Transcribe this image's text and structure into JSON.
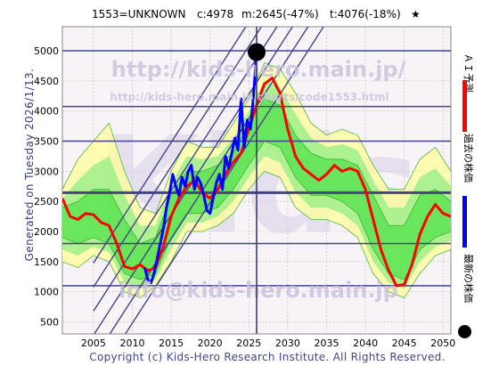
{
  "header": {
    "code_name": "1553=UNKNOWN",
    "current": "c:4978",
    "min_stat": "m:2645(-47%)",
    "target_stat": "t:4076(-18%)",
    "star": "★"
  },
  "side_label": "Generated on Tuesday 2026/1/13.",
  "copyright": "Copyright (c) Kids-Hero Research Institute. All Rights Reserved.",
  "watermarks": {
    "top_url": "http://kids-hero.main.jp/",
    "mid_url": "http://kids-hero.main.jp/charts/code1553.html",
    "big_logo": "Kids",
    "email": "info@kids-hero.main.jp"
  },
  "legend": {
    "ai_forecast": "ＡＩ予測",
    "past_price": "過去の株価",
    "latest_price": "最新の株価"
  },
  "colors": {
    "ai_forecast": "#ff0000",
    "past_price": "#0000ff",
    "latest_marker": "#000000",
    "band_inner": "#33dd33",
    "band_mid": "#99ee88",
    "band_outer": "#ffff99",
    "hline": "#444488",
    "channel": "#444488",
    "grid": "#bbbbbb"
  },
  "chart_data": {
    "type": "line",
    "title": "",
    "xlabel": "",
    "ylabel": "",
    "xlim": [
      2001,
      2051
    ],
    "ylim": [
      300,
      5400
    ],
    "x_ticks": [
      2005,
      2010,
      2015,
      2020,
      2025,
      2030,
      2035,
      2040,
      2045,
      2050
    ],
    "y_ticks": [
      500,
      1000,
      1500,
      2000,
      2500,
      3000,
      3500,
      4000,
      4500,
      5000
    ],
    "horizontal_levels": [
      1100,
      1800,
      2645,
      3500,
      4076,
      5000
    ],
    "current_date": 2026,
    "latest_point": {
      "x": 2026.0,
      "y": 4978
    },
    "series": [
      {
        "name": "ＡＩ予測",
        "x": [
          2001,
          2002,
          2003,
          2004,
          2005,
          2006,
          2007,
          2008,
          2009,
          2010,
          2011,
          2012,
          2013,
          2014,
          2015,
          2016,
          2017,
          2018,
          2019,
          2020,
          2021,
          2022,
          2023,
          2024,
          2025,
          2026,
          2027,
          2028,
          2029,
          2030,
          2031,
          2032,
          2033,
          2034,
          2035,
          2036,
          2037,
          2038,
          2039,
          2040,
          2041,
          2042,
          2043,
          2044,
          2045,
          2046,
          2047,
          2048,
          2049,
          2050,
          2051
        ],
        "values": [
          2550,
          2250,
          2200,
          2300,
          2280,
          2150,
          2100,
          1800,
          1420,
          1380,
          1450,
          1350,
          1400,
          1750,
          2250,
          2550,
          2750,
          2850,
          2650,
          2550,
          2700,
          2950,
          3150,
          3300,
          3700,
          4100,
          4450,
          4550,
          4300,
          3700,
          3250,
          3050,
          2950,
          2850,
          2950,
          3100,
          3000,
          3050,
          3000,
          2700,
          2200,
          1700,
          1350,
          1100,
          1120,
          1450,
          1950,
          2250,
          2450,
          2300,
          2250
        ]
      },
      {
        "name": "過去の株価",
        "x": [
          2011.6,
          2012.0,
          2012.4,
          2012.8,
          2013.2,
          2013.6,
          2014.0,
          2014.4,
          2014.8,
          2015.2,
          2015.6,
          2016.0,
          2016.4,
          2016.8,
          2017.2,
          2017.6,
          2018.0,
          2018.4,
          2018.8,
          2019.2,
          2019.6,
          2020.0,
          2020.4,
          2020.8,
          2021.2,
          2021.6,
          2022.0,
          2022.4,
          2022.8,
          2023.2,
          2023.6,
          2024.0,
          2024.4,
          2024.8,
          2025.2,
          2025.6,
          2026.0
        ],
        "values": [
          1400,
          1200,
          1150,
          1300,
          1550,
          1800,
          2050,
          2400,
          2650,
          2950,
          2750,
          2600,
          2900,
          2750,
          3000,
          3100,
          2700,
          2900,
          2800,
          2600,
          2350,
          2300,
          2550,
          2800,
          2950,
          2700,
          3250,
          3050,
          3300,
          3550,
          3350,
          4200,
          3400,
          3850,
          3700,
          4250,
          4978
        ]
      }
    ],
    "bands": {
      "x": [
        2001,
        2003,
        2005,
        2007,
        2009,
        2011,
        2013,
        2015,
        2017,
        2019,
        2021,
        2023,
        2025,
        2027,
        2029,
        2031,
        2033,
        2035,
        2037,
        2039,
        2041,
        2043,
        2045,
        2047,
        2049,
        2051
      ],
      "outer_low": [
        1500,
        1400,
        1600,
        1500,
        1000,
        900,
        1100,
        1500,
        2000,
        2000,
        2100,
        2300,
        2700,
        3000,
        2900,
        2400,
        2200,
        2200,
        2100,
        1900,
        1300,
        1000,
        900,
        1300,
        1600,
        1700
      ],
      "outer_high": [
        2700,
        3200,
        3500,
        3800,
        3000,
        2400,
        2300,
        3000,
        3500,
        3400,
        3400,
        3800,
        4200,
        4800,
        4700,
        4300,
        3800,
        3600,
        3700,
        3600,
        3100,
        2700,
        2700,
        3200,
        3400,
        3000
      ],
      "inner_low": [
        1900,
        1800,
        1900,
        1800,
        1300,
        1200,
        1300,
        1900,
        2300,
        2300,
        2400,
        2700,
        3100,
        3500,
        3400,
        2900,
        2600,
        2600,
        2500,
        2300,
        1700,
        1300,
        1200,
        1700,
        1900,
        2000
      ],
      "inner_high": [
        2400,
        2500,
        2700,
        2700,
        2200,
        1800,
        1900,
        2600,
        3000,
        3000,
        3100,
        3300,
        3800,
        4200,
        4100,
        3600,
        3300,
        3200,
        3200,
        3100,
        2600,
        2100,
        2100,
        2600,
        2700,
        2500
      ]
    }
  }
}
